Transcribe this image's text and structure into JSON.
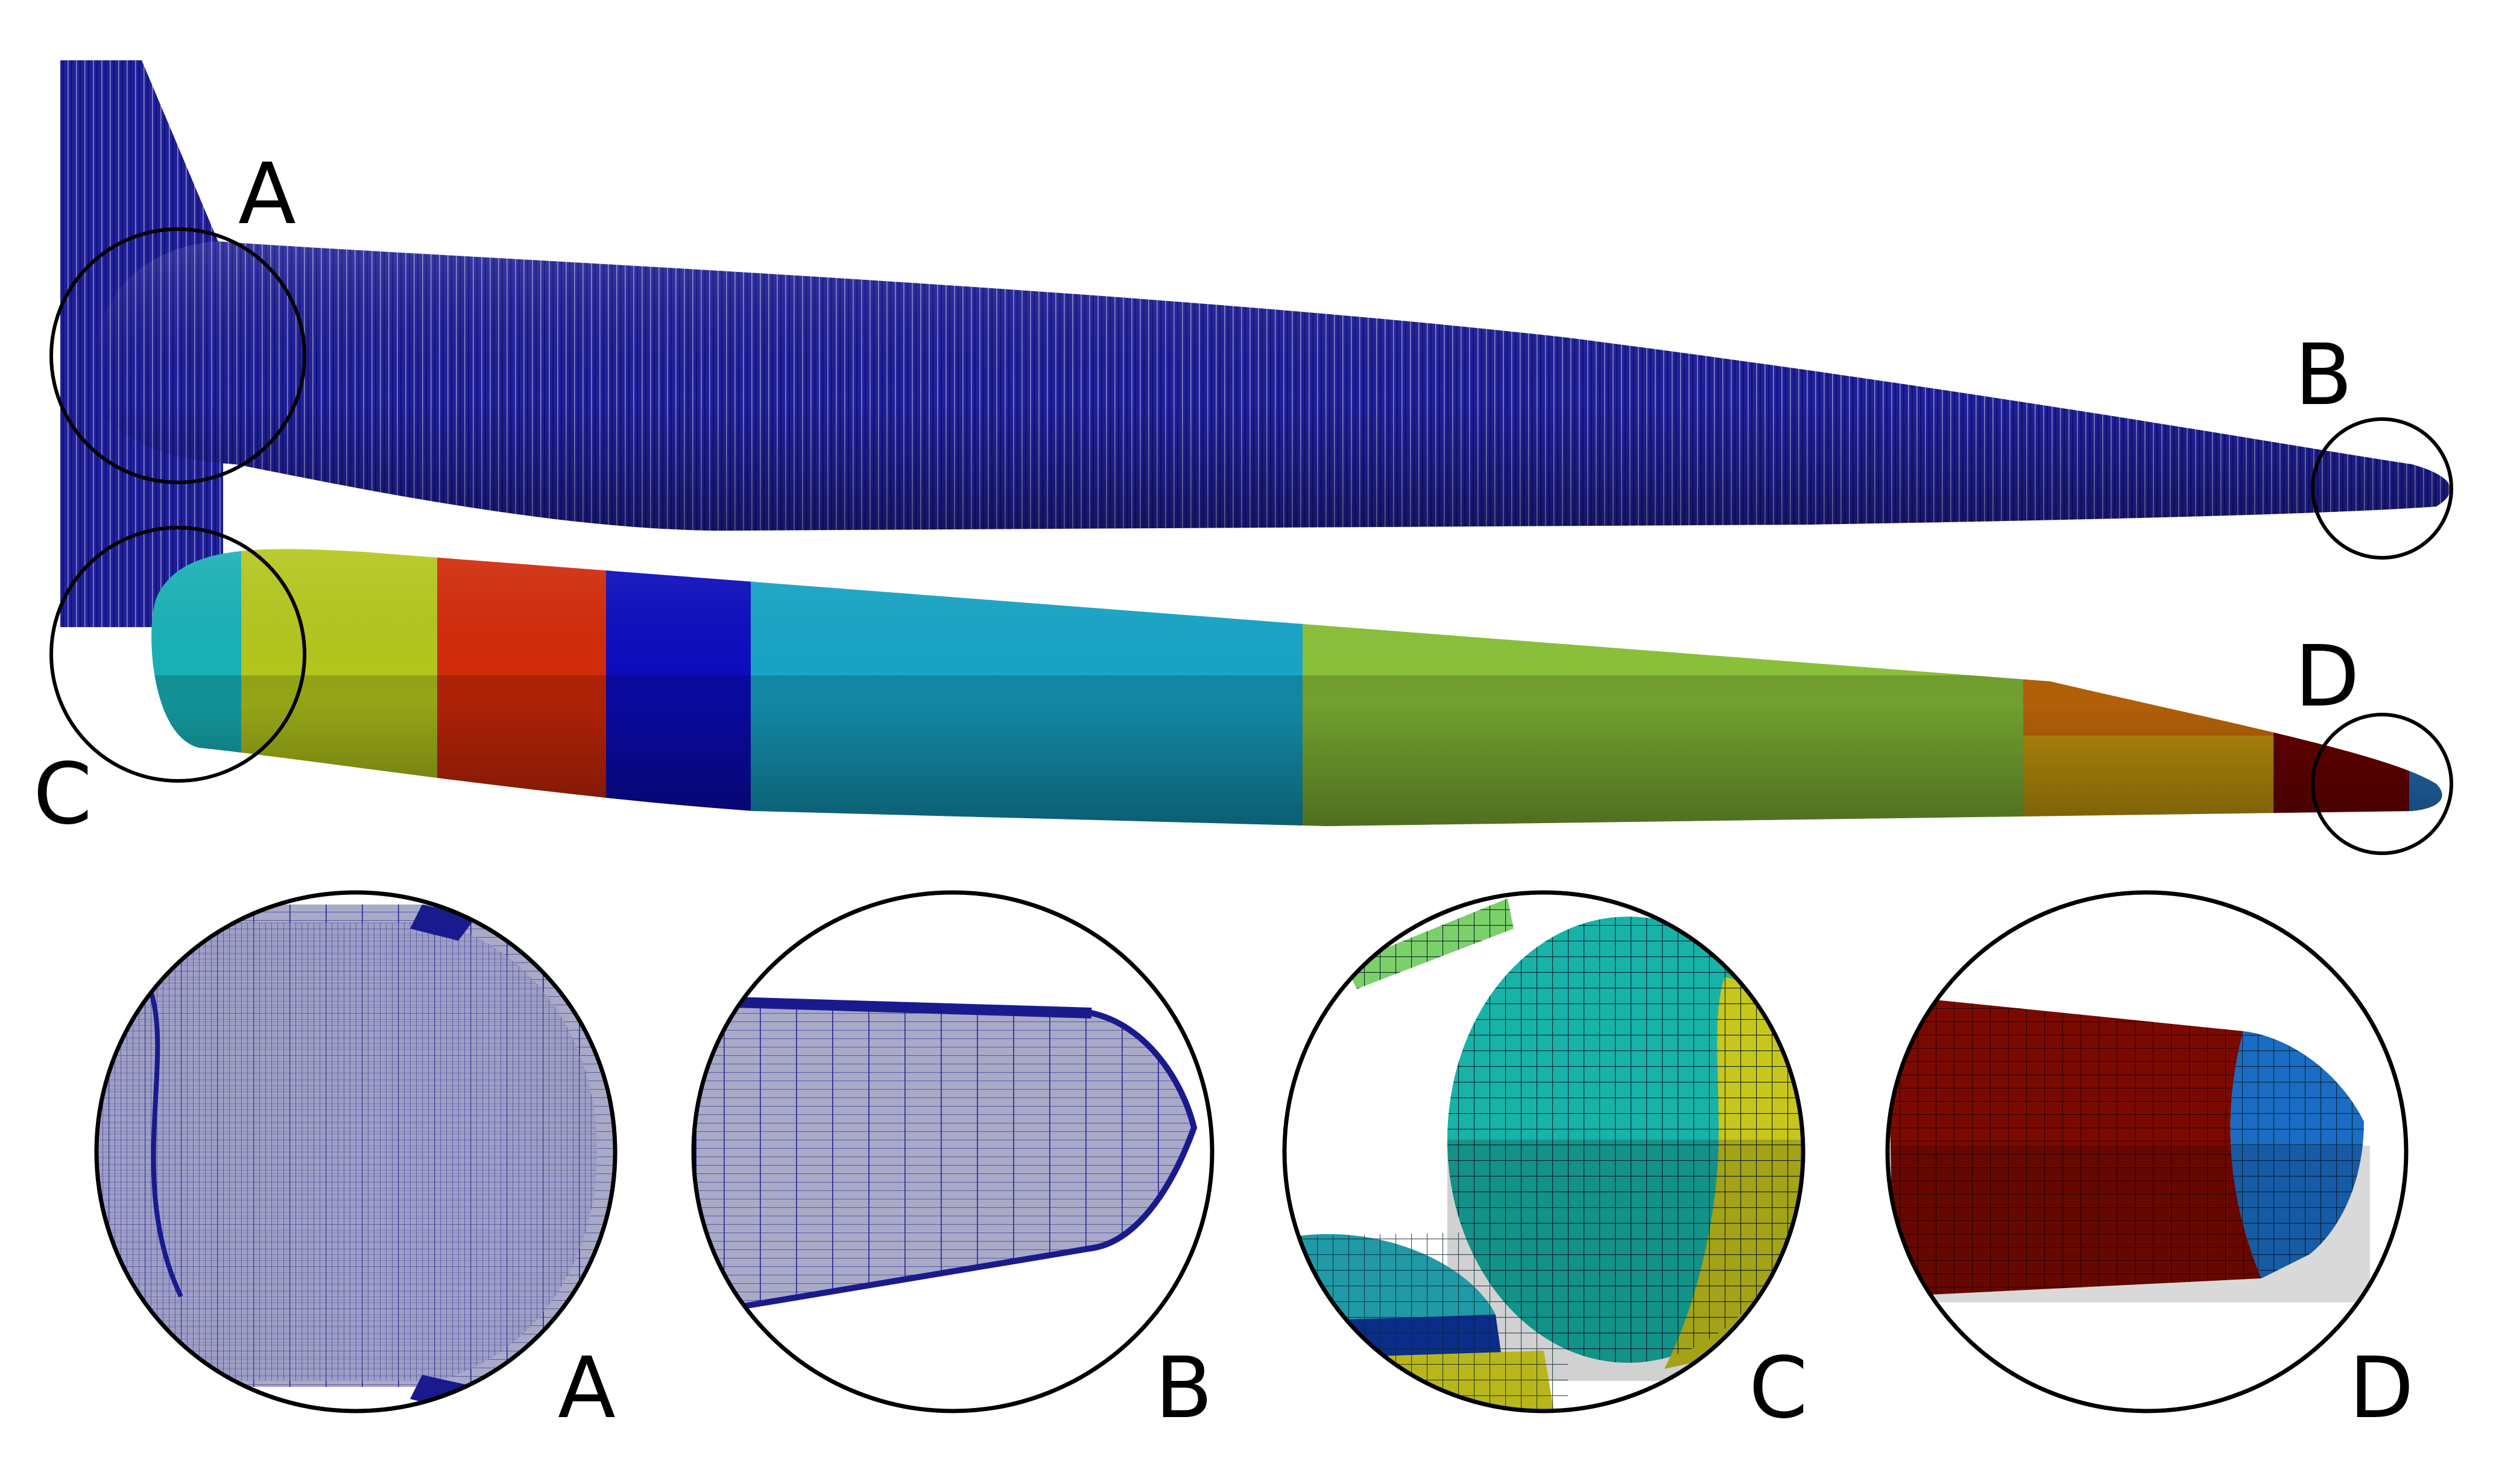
{
  "labels": {
    "top_a": "A",
    "top_b": "B",
    "top_c": "C",
    "top_d": "D",
    "zoom_a": "A",
    "zoom_b": "B",
    "zoom_c": "C",
    "zoom_d": "D"
  },
  "colors": {
    "mesh_blue": "#1a1a8f",
    "mesh_line": "#0d0d6e",
    "segments": [
      "#17b3b8",
      "#b5c91c",
      "#d42a08",
      "#0c0cc0",
      "#17a6c8",
      "#8bc33a",
      "#d9a80f",
      "#d84a08",
      "#7a0000",
      "#2a7fd0"
    ]
  }
}
